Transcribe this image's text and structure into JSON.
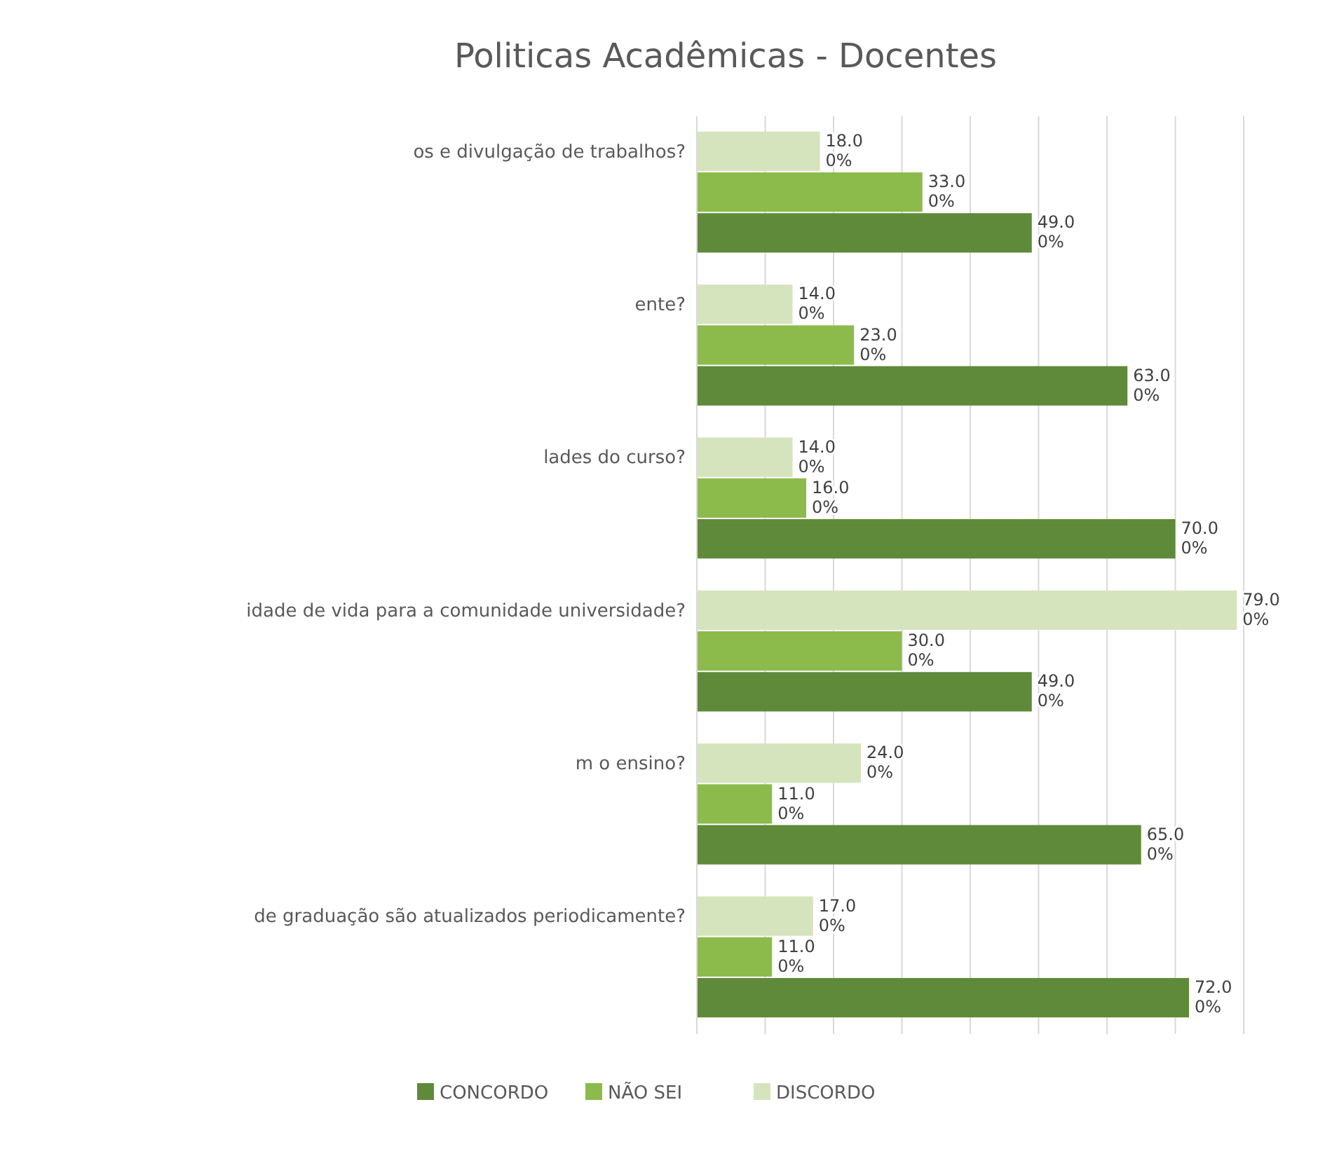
{
  "chart_data": {
    "type": "bar",
    "orientation": "horizontal",
    "title": "Politicas Acadêmicas - Docentes",
    "categories": [
      "os e divulgação de trabalhos?",
      "ente?",
      "lades do curso?",
      "idade de vida para a comunidade universidade?",
      "m o ensino?",
      "de graduação são atualizados periodicamente?"
    ],
    "series": [
      {
        "name": "CONCORDO",
        "color": "#5f8a3a",
        "values": [
          49,
          63,
          70,
          49,
          65,
          72
        ],
        "value_labels": [
          "49.0\n0%",
          "63.0\n0%",
          "70.0\n0%",
          "49.0\n0%",
          "65.0\n0%",
          "72.0\n0%"
        ]
      },
      {
        "name": "NÃO SEI",
        "color": "#8cbb4c",
        "values": [
          33,
          23,
          16,
          30,
          11,
          11
        ],
        "value_labels": [
          "33.0\n0%",
          "23.0\n0%",
          "16.0\n0%",
          "30.0\n0%",
          "11.0\n0%",
          "11.0\n0%"
        ]
      },
      {
        "name": "DISCORDO",
        "color": "#d6e4bd",
        "values": [
          18,
          14,
          14,
          79,
          24,
          17
        ],
        "value_labels": [
          "18.0\n0%",
          "14.0\n0%",
          "14.0\n0%",
          "79.0\n0%",
          "24.0\n0%",
          "17.0\n0%"
        ]
      }
    ],
    "xlim": [
      0,
      80
    ],
    "xticks": [
      {
        "value": 0,
        "label": null
      },
      {
        "value": 10,
        "label": null
      },
      {
        "value": 20,
        "label": null
      },
      {
        "value": 30,
        "label": null
      },
      {
        "value": 40,
        "label": null
      },
      {
        "value": 50,
        "label": null
      },
      {
        "value": 60,
        "label": null
      },
      {
        "value": 70,
        "label": null
      },
      {
        "value": 80,
        "label": null
      }
    ],
    "tick_labels": "y",
    "grid": "x",
    "legend": "bottom"
  }
}
